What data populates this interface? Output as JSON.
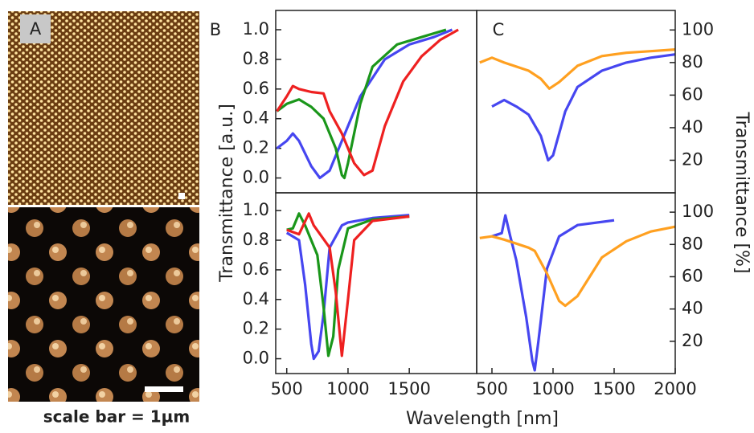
{
  "figure": {
    "panel_a_label": "A",
    "scale_bar_text": "scale bar = 1µm",
    "x_label": "Wavelength [nm]",
    "y_label_left": "Transmittance [a.u.]",
    "y_label_right": "Transmittance [%]"
  },
  "chart_data": [
    {
      "type": "line",
      "panel": "B",
      "xlim": [
        410,
        2050
      ],
      "ylim": [
        -0.1,
        1.13
      ],
      "yticks": [
        {
          "value": 0,
          "label": "0.0"
        },
        0.2,
        0.4,
        0.6,
        0.8,
        {
          "value": 1,
          "label": "1.0"
        }
      ],
      "series": [
        {
          "color": "#4646f0",
          "x": [
            420,
            500,
            550,
            600,
            700,
            770,
            850,
            950,
            1100,
            1300,
            1500,
            1700,
            1850
          ],
          "values": [
            0.2,
            0.25,
            0.3,
            0.25,
            0.08,
            0,
            0.05,
            0.25,
            0.55,
            0.8,
            0.9,
            0.95,
            1.0
          ]
        },
        {
          "color": "#1a961a",
          "x": [
            420,
            500,
            600,
            700,
            800,
            900,
            950,
            970,
            1000,
            1100,
            1200,
            1400,
            1600,
            1800
          ],
          "values": [
            0.45,
            0.5,
            0.53,
            0.48,
            0.4,
            0.2,
            0.02,
            0,
            0.1,
            0.5,
            0.75,
            0.9,
            0.95,
            1.0
          ]
        },
        {
          "color": "#ee2020",
          "x": [
            420,
            500,
            550,
            600,
            700,
            800,
            850,
            950,
            1050,
            1130,
            1200,
            1300,
            1450,
            1600,
            1750,
            1900
          ],
          "values": [
            0.45,
            0.55,
            0.62,
            0.6,
            0.58,
            0.57,
            0.45,
            0.3,
            0.1,
            0.02,
            0.05,
            0.35,
            0.65,
            0.82,
            0.93,
            1.0
          ]
        }
      ]
    },
    {
      "type": "line",
      "panel": "C",
      "xlim": [
        375,
        2000
      ],
      "ylim": [
        0,
        112
      ],
      "yticks": [
        20,
        40,
        60,
        80,
        100
      ],
      "series": [
        {
          "color": "#4646f0",
          "x": [
            500,
            600,
            700,
            800,
            900,
            960,
            1000,
            1100,
            1200,
            1400,
            1600,
            1800,
            2000
          ],
          "values": [
            53,
            57,
            53,
            48,
            35,
            20,
            23,
            50,
            65,
            75,
            80,
            83,
            85
          ]
        },
        {
          "color": "#ffa020",
          "x": [
            400,
            500,
            600,
            800,
            900,
            970,
            1050,
            1200,
            1400,
            1600,
            1800,
            2000
          ],
          "values": [
            80,
            83,
            80,
            75,
            70,
            64,
            68,
            78,
            84,
            86,
            87,
            88
          ]
        }
      ]
    },
    {
      "type": "line",
      "xlim": [
        410,
        2050
      ],
      "ylim": [
        -0.1,
        1.12
      ],
      "xticks": [
        500,
        1000,
        1500
      ],
      "yticks": [
        {
          "value": 0,
          "label": "0.0"
        },
        0.2,
        0.4,
        0.6,
        0.8,
        {
          "value": 1,
          "label": "1.0"
        }
      ],
      "series": [
        {
          "color": "#4646f0",
          "x": [
            500,
            600,
            650,
            700,
            720,
            760,
            800,
            850,
            950,
            1000,
            1200,
            1500
          ],
          "values": [
            0.85,
            0.8,
            0.5,
            0.1,
            0,
            0.05,
            0.3,
            0.75,
            0.9,
            0.92,
            0.95,
            0.97
          ]
        },
        {
          "color": "#1a961a",
          "x": [
            500,
            550,
            600,
            650,
            750,
            800,
            840,
            880,
            920,
            1000,
            1200,
            1500
          ],
          "values": [
            0.87,
            0.88,
            0.98,
            0.9,
            0.7,
            0.35,
            0.02,
            0.15,
            0.6,
            0.88,
            0.94,
            0.96
          ]
        },
        {
          "color": "#ee2020",
          "x": [
            500,
            600,
            680,
            720,
            850,
            900,
            950,
            1000,
            1050,
            1200,
            1500
          ],
          "values": [
            0.87,
            0.84,
            0.98,
            0.9,
            0.75,
            0.45,
            0.02,
            0.4,
            0.8,
            0.93,
            0.96
          ]
        }
      ]
    },
    {
      "type": "line",
      "xlim": [
        375,
        2000
      ],
      "ylim": [
        0,
        112
      ],
      "xticks": [
        500,
        1000,
        1500,
        2000
      ],
      "yticks": [
        20,
        40,
        60,
        80,
        100
      ],
      "series": [
        {
          "color": "#4646f0",
          "x": [
            500,
            580,
            610,
            650,
            700,
            780,
            830,
            850,
            880,
            950,
            1050,
            1200,
            1500
          ],
          "values": [
            85,
            87,
            98,
            85,
            70,
            35,
            8,
            2,
            20,
            65,
            85,
            92,
            95
          ]
        },
        {
          "color": "#ffa020",
          "x": [
            400,
            500,
            600,
            800,
            850,
            950,
            1050,
            1100,
            1200,
            1400,
            1600,
            1800,
            2000
          ],
          "values": [
            84,
            85,
            83,
            78,
            76,
            62,
            45,
            42,
            48,
            72,
            82,
            88,
            91
          ]
        }
      ]
    }
  ]
}
